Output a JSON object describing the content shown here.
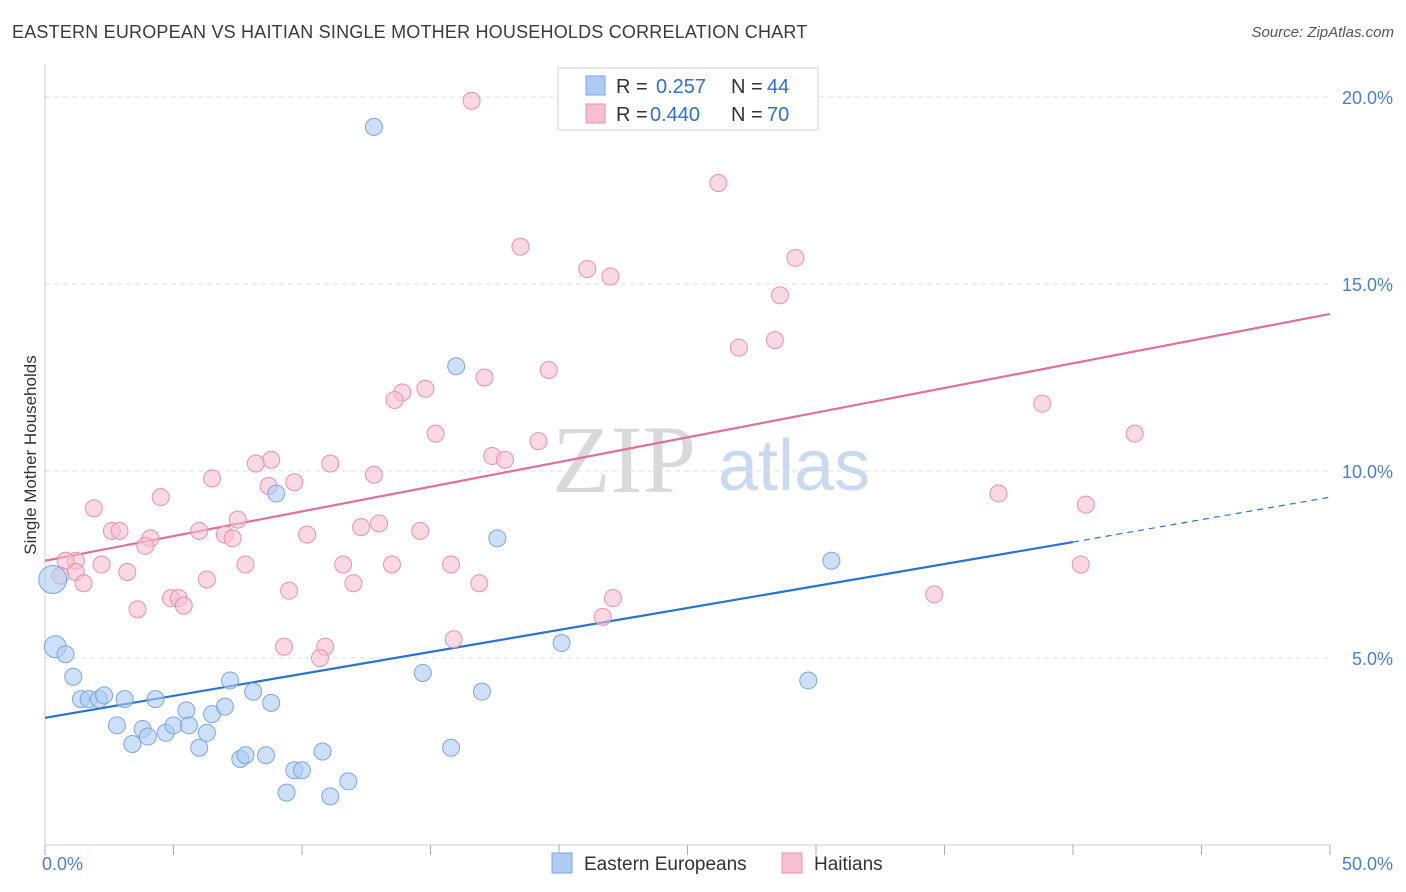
{
  "title": "EASTERN EUROPEAN VS HAITIAN SINGLE MOTHER HOUSEHOLDS CORRELATION CHART",
  "source": "Source: ZipAtlas.com",
  "watermark": {
    "zip": "ZIP",
    "atlas": "atlas"
  },
  "colors": {
    "blue_fill": "#aecbf2",
    "blue_stroke": "#7aa6e0",
    "blue_line": "#2a72d0",
    "pink_fill": "#f6c0d2",
    "pink_stroke": "#e890ae",
    "pink_line": "#e0709a",
    "tick_text": "#4a7fc8",
    "grid": "#dddddd"
  },
  "legend": {
    "rows": [
      {
        "r_label": "R =",
        "r_value": "0.257",
        "n_label": "N =",
        "n_value": "44"
      },
      {
        "r_label": "R =",
        "r_value": "0.440",
        "n_label": "N =",
        "n_value": "70"
      }
    ]
  },
  "bottom_legend": [
    "Eastern Europeans",
    "Haitians"
  ],
  "chart_data": {
    "type": "scatter",
    "title": "EASTERN EUROPEAN VS HAITIAN SINGLE MOTHER HOUSEHOLDS CORRELATION CHART",
    "xlabel": "",
    "ylabel": "Single Mother Households",
    "xlim": [
      0,
      50
    ],
    "ylim": [
      0,
      20.5
    ],
    "x_ticks": [
      0,
      50
    ],
    "x_tick_labels": [
      "0.0%",
      "50.0%"
    ],
    "y_ticks": [
      5,
      10,
      15,
      20
    ],
    "y_tick_labels": [
      "5.0%",
      "10.0%",
      "15.0%",
      "20.0%"
    ],
    "grid": true,
    "legend_position": "top-center",
    "series": [
      {
        "name": "Eastern Europeans",
        "color": "#aecbf2",
        "trend": {
          "x": [
            0,
            40
          ],
          "y": [
            3.4,
            8.1
          ],
          "dashed_to": [
            50,
            9.3
          ]
        },
        "points": [
          [
            12.8,
            19.2
          ],
          [
            16.0,
            12.8
          ],
          [
            9.0,
            9.4
          ],
          [
            17.6,
            8.2
          ],
          [
            30.6,
            7.6
          ],
          [
            0.4,
            5.3
          ],
          [
            0.8,
            5.1
          ],
          [
            1.1,
            4.5
          ],
          [
            1.4,
            3.9
          ],
          [
            1.7,
            3.9
          ],
          [
            2.1,
            3.9
          ],
          [
            2.3,
            4.0
          ],
          [
            3.1,
            3.9
          ],
          [
            4.3,
            3.9
          ],
          [
            2.8,
            3.2
          ],
          [
            3.4,
            2.7
          ],
          [
            3.8,
            3.1
          ],
          [
            4.0,
            2.9
          ],
          [
            4.7,
            3.0
          ],
          [
            5.0,
            3.2
          ],
          [
            5.5,
            3.6
          ],
          [
            5.6,
            3.2
          ],
          [
            6.0,
            2.6
          ],
          [
            6.3,
            3.0
          ],
          [
            6.5,
            3.5
          ],
          [
            7.0,
            3.7
          ],
          [
            7.2,
            4.4
          ],
          [
            7.6,
            2.3
          ],
          [
            7.8,
            2.4
          ],
          [
            8.1,
            4.1
          ],
          [
            8.6,
            2.4
          ],
          [
            8.8,
            3.8
          ],
          [
            9.4,
            1.4
          ],
          [
            9.7,
            2.0
          ],
          [
            10.0,
            2.0
          ],
          [
            10.8,
            2.5
          ],
          [
            11.1,
            1.3
          ],
          [
            11.8,
            1.7
          ],
          [
            14.7,
            4.6
          ],
          [
            15.8,
            2.6
          ],
          [
            17.0,
            4.1
          ],
          [
            20.1,
            5.4
          ],
          [
            29.7,
            4.4
          ],
          [
            0.3,
            7.1
          ]
        ]
      },
      {
        "name": "Haitians",
        "color": "#f6c0d2",
        "trend": {
          "x": [
            0,
            50
          ],
          "y": [
            7.6,
            14.2
          ]
        },
        "points": [
          [
            16.6,
            19.9
          ],
          [
            26.2,
            17.7
          ],
          [
            18.5,
            16.0
          ],
          [
            21.1,
            15.4
          ],
          [
            22.0,
            15.2
          ],
          [
            29.2,
            15.7
          ],
          [
            28.6,
            14.7
          ],
          [
            27.0,
            13.3
          ],
          [
            28.4,
            13.5
          ],
          [
            19.6,
            12.7
          ],
          [
            17.1,
            12.5
          ],
          [
            14.8,
            12.2
          ],
          [
            13.9,
            12.1
          ],
          [
            13.6,
            11.9
          ],
          [
            38.8,
            11.8
          ],
          [
            42.4,
            11.0
          ],
          [
            15.2,
            11.0
          ],
          [
            19.2,
            10.8
          ],
          [
            17.4,
            10.4
          ],
          [
            17.9,
            10.3
          ],
          [
            8.8,
            10.3
          ],
          [
            8.2,
            10.2
          ],
          [
            11.1,
            10.2
          ],
          [
            12.8,
            9.9
          ],
          [
            6.5,
            9.8
          ],
          [
            9.7,
            9.7
          ],
          [
            8.7,
            9.6
          ],
          [
            37.1,
            9.4
          ],
          [
            4.5,
            9.3
          ],
          [
            40.5,
            9.1
          ],
          [
            1.9,
            9.0
          ],
          [
            7.5,
            8.7
          ],
          [
            13.0,
            8.6
          ],
          [
            12.3,
            8.5
          ],
          [
            2.6,
            8.4
          ],
          [
            2.9,
            8.4
          ],
          [
            6.0,
            8.4
          ],
          [
            14.6,
            8.4
          ],
          [
            7.0,
            8.3
          ],
          [
            10.2,
            8.3
          ],
          [
            7.3,
            8.2
          ],
          [
            4.1,
            8.2
          ],
          [
            3.9,
            8.0
          ],
          [
            1.2,
            7.6
          ],
          [
            0.8,
            7.6
          ],
          [
            2.2,
            7.5
          ],
          [
            7.8,
            7.5
          ],
          [
            11.6,
            7.5
          ],
          [
            13.5,
            7.5
          ],
          [
            15.8,
            7.5
          ],
          [
            40.3,
            7.5
          ],
          [
            1.2,
            7.3
          ],
          [
            3.2,
            7.3
          ],
          [
            6.3,
            7.1
          ],
          [
            0.6,
            7.2
          ],
          [
            12.0,
            7.0
          ],
          [
            16.9,
            7.0
          ],
          [
            1.5,
            7.0
          ],
          [
            9.5,
            6.8
          ],
          [
            34.6,
            6.7
          ],
          [
            4.9,
            6.6
          ],
          [
            5.2,
            6.6
          ],
          [
            5.4,
            6.4
          ],
          [
            3.6,
            6.3
          ],
          [
            22.1,
            6.6
          ],
          [
            21.7,
            6.1
          ],
          [
            15.9,
            5.5
          ],
          [
            9.3,
            5.3
          ],
          [
            10.9,
            5.3
          ],
          [
            10.7,
            5.0
          ]
        ]
      }
    ]
  }
}
